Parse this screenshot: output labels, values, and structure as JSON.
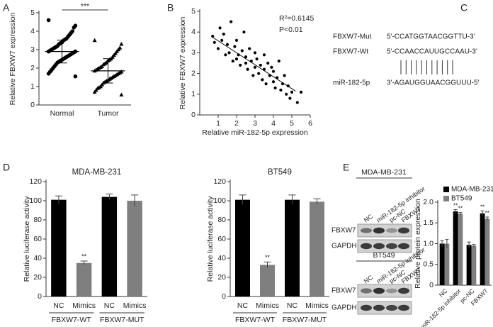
{
  "panel_labels": [
    "A",
    "B",
    "C",
    "D",
    "E"
  ],
  "chart_data": [
    {
      "type": "dotplot",
      "categories": [
        "Normal",
        "Tumor"
      ],
      "values": [
        [
          4.6,
          4.3,
          4.2,
          4.0,
          3.9,
          3.8,
          3.7,
          3.6,
          3.55,
          3.5,
          3.4,
          3.35,
          3.3,
          3.2,
          3.15,
          3.1,
          3.05,
          3.0,
          2.95,
          2.9,
          2.9,
          2.85,
          2.8,
          2.75,
          2.7,
          2.65,
          2.6,
          2.55,
          2.5,
          2.45,
          2.4,
          2.35,
          2.3,
          2.2,
          2.1,
          2.0,
          1.9,
          1.8,
          1.7,
          1.55
        ],
        [
          3.5,
          3.3,
          3.1,
          3.0,
          2.9,
          2.8,
          2.7,
          2.6,
          2.5,
          2.45,
          2.4,
          2.3,
          2.25,
          2.2,
          2.1,
          2.05,
          2.0,
          1.95,
          1.9,
          1.85,
          1.8,
          1.75,
          1.7,
          1.65,
          1.6,
          1.55,
          1.5,
          1.45,
          1.4,
          1.35,
          1.3,
          1.25,
          1.2,
          1.1,
          1.0,
          0.95,
          0.9,
          0.8,
          0.7,
          0.55
        ]
      ],
      "mean": [
        2.9,
        1.85
      ],
      "sd": [
        0.62,
        0.66
      ],
      "marker": [
        "circle",
        "triangle"
      ],
      "color": "#000000",
      "significance": "***",
      "ylabel": "Relative FBXW7 expression",
      "ylim": [
        0,
        5
      ],
      "yticks": [
        0,
        1,
        2,
        3,
        4,
        5
      ]
    },
    {
      "type": "scatter",
      "x": [
        0.7,
        0.8,
        1.0,
        1.1,
        1.2,
        1.3,
        1.4,
        1.5,
        1.6,
        1.7,
        1.8,
        1.9,
        2.0,
        2.0,
        2.1,
        2.2,
        2.3,
        2.4,
        2.5,
        2.5,
        2.6,
        2.7,
        2.8,
        2.9,
        3.0,
        3.0,
        3.1,
        3.2,
        3.3,
        3.4,
        3.5,
        3.5,
        3.6,
        3.7,
        3.8,
        3.9,
        4.0,
        4.0,
        4.1,
        4.2,
        4.3,
        4.4,
        4.5,
        4.6,
        4.7,
        4.8,
        4.9,
        5.0,
        5.3,
        5.5
      ],
      "y": [
        3.8,
        3.5,
        3.2,
        4.2,
        3.6,
        3.9,
        2.9,
        3.4,
        3.0,
        4.5,
        2.6,
        3.3,
        2.7,
        3.6,
        2.9,
        2.4,
        3.1,
        4.0,
        2.5,
        2.8,
        2.2,
        3.2,
        2.6,
        1.9,
        2.3,
        3.0,
        2.7,
        2.0,
        2.4,
        1.7,
        2.2,
        2.9,
        1.5,
        2.5,
        1.9,
        2.3,
        1.6,
        2.1,
        1.3,
        1.8,
        2.6,
        1.2,
        1.5,
        1.9,
        1.0,
        1.4,
        0.8,
        1.1,
        0.6,
        1.1
      ],
      "fit_line": {
        "x": [
          0.7,
          5.2
        ],
        "y": [
          3.75,
          1.15
        ]
      },
      "color": "#000000",
      "annotations": [
        "R²=0.6145",
        "P<0.01"
      ],
      "xlabel": "Relative miR-182-5p expression",
      "ylabel": "Relative FBXW7 expression",
      "xlim": [
        0,
        6
      ],
      "xticks": [
        1,
        2,
        3,
        4,
        5,
        6
      ],
      "ylim": [
        0,
        5
      ],
      "yticks": [
        0,
        1,
        2,
        3,
        4,
        5
      ]
    },
    {
      "type": "bar",
      "title": "MDA-MB-231",
      "categories": [
        "NC",
        "Mimics",
        "NC",
        "Mimics"
      ],
      "group_labels": [
        "FBXW7-WT",
        "FBXW7-MUT"
      ],
      "values": [
        101,
        35,
        104,
        100
      ],
      "errors": [
        4,
        2,
        3,
        6
      ],
      "colors": [
        "#000000",
        "#7f7f7f",
        "#000000",
        "#7f7f7f"
      ],
      "significance": [
        null,
        "**",
        null,
        null
      ],
      "ylabel": "Relative luciferase activity",
      "ylim": [
        0,
        120
      ],
      "yticks": [
        0,
        20,
        40,
        60,
        80,
        100,
        120
      ]
    },
    {
      "type": "bar",
      "title": "BT549",
      "categories": [
        "NC",
        "Mimics",
        "NC",
        "Mimics"
      ],
      "group_labels": [
        "FBXW7-WT",
        "FBXW7-MUT"
      ],
      "values": [
        101,
        33,
        101,
        99
      ],
      "errors": [
        5,
        3,
        5,
        3
      ],
      "colors": [
        "#000000",
        "#7f7f7f",
        "#000000",
        "#7f7f7f"
      ],
      "significance": [
        null,
        "**",
        null,
        null
      ],
      "ylabel": "Relative luciferase activity",
      "ylim": [
        0,
        120
      ],
      "yticks": [
        0,
        20,
        40,
        60,
        80,
        100,
        120
      ]
    },
    {
      "type": "grouped_bar",
      "categories": [
        "NC",
        "miR-182-5p inhibitor",
        "pc-NC",
        "FBXW7"
      ],
      "series": [
        {
          "name": "MDA-MB-231",
          "color": "#000000",
          "values": [
            1.0,
            1.78,
            0.97,
            1.73
          ],
          "errors": [
            0.07,
            0.04,
            0.07,
            0.06
          ],
          "significance": [
            null,
            "**",
            null,
            "**"
          ]
        },
        {
          "name": "BT549",
          "color": "#7f7f7f",
          "values": [
            1.0,
            1.72,
            0.95,
            1.6
          ],
          "errors": [
            0.1,
            0.03,
            0.03,
            0.04
          ],
          "significance": [
            null,
            "**",
            null,
            "**"
          ]
        }
      ],
      "ylabel": "Relative protein expression",
      "ylim": [
        0,
        2
      ],
      "yticks": [
        0,
        0.5,
        {
          "value": 1,
          "label": "1.0"
        },
        1.5,
        {
          "value": 2,
          "label": "2.0"
        }
      ]
    }
  ],
  "panel_c": {
    "rows": [
      {
        "name": "FBXW7-Mut",
        "sequence": "5'-CCATGGTAACGGTTU-3'"
      },
      {
        "name": "FBXW7-Wt",
        "sequence": "5'-CCAACCAUUGCCAAU-3'"
      },
      {
        "name": "miR-182-5p",
        "sequence": "3'-AGAUGGUAACGGUUU-5'"
      }
    ]
  },
  "panel_e_blots": [
    {
      "title": "MDA-MB-231",
      "lanes": [
        "NC",
        "miR-182-5p inhibitor",
        "pc-NC",
        "FBXW7"
      ],
      "rows": [
        "FBXW7",
        "GAPDH"
      ]
    },
    {
      "title": "BT549",
      "lanes": [
        "NC",
        "miR-182-5p inhibitor",
        "pc-NC",
        "FBXW7"
      ],
      "rows": [
        "FBXW7",
        "GAPDH"
      ]
    }
  ]
}
